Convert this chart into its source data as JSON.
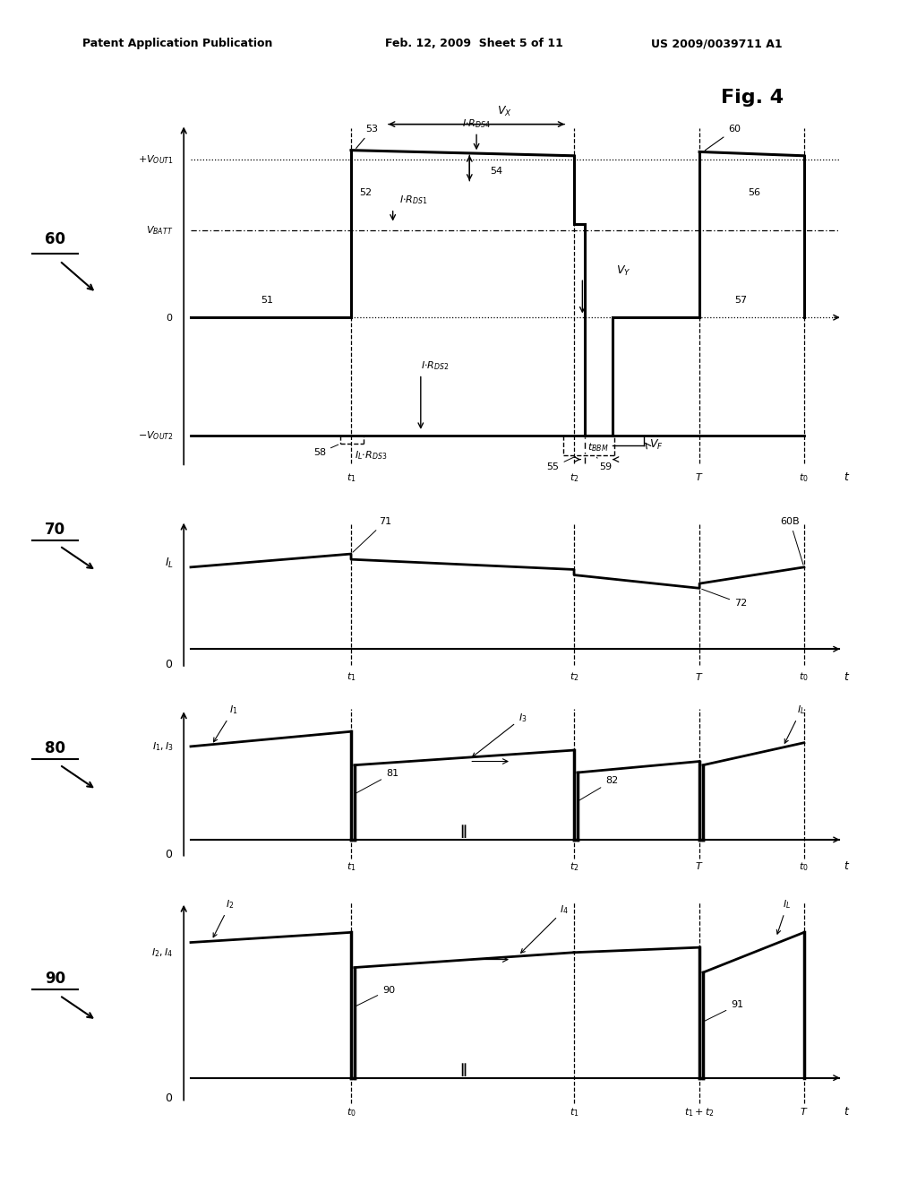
{
  "title_text": "Patent Application Publication    Feb. 12, 2009  Sheet 5 of 11       US 2009/0039711 A1",
  "fig_label": "Fig. 4",
  "bg_color": "#ffffff",
  "line_color": "#000000"
}
